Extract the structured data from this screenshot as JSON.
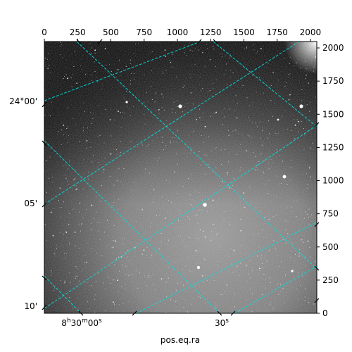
{
  "figure": {
    "xlabel": "pos.eq.ra",
    "pixel_axis_x": {
      "range": [
        0,
        2048
      ],
      "ticks": [
        0,
        250,
        500,
        750,
        1000,
        1250,
        1500,
        1750,
        2000
      ]
    },
    "pixel_axis_y": {
      "range": [
        0,
        2048
      ],
      "ticks": [
        0,
        250,
        500,
        750,
        1000,
        1250,
        1500,
        1750,
        2000
      ]
    },
    "ra_ticks": [
      {
        "label": "8h30m00s",
        "main": "8",
        "sup": "h",
        "rest": "30",
        "sup2": "m",
        "tail": "00",
        "sup3": "s"
      },
      {
        "label": "30s",
        "main": "30",
        "sup": "s"
      }
    ],
    "dec_ticks": [
      "24°00'",
      "05'",
      "10'"
    ],
    "grid_color": "#00e0e0",
    "image_palette": "grayscale"
  }
}
